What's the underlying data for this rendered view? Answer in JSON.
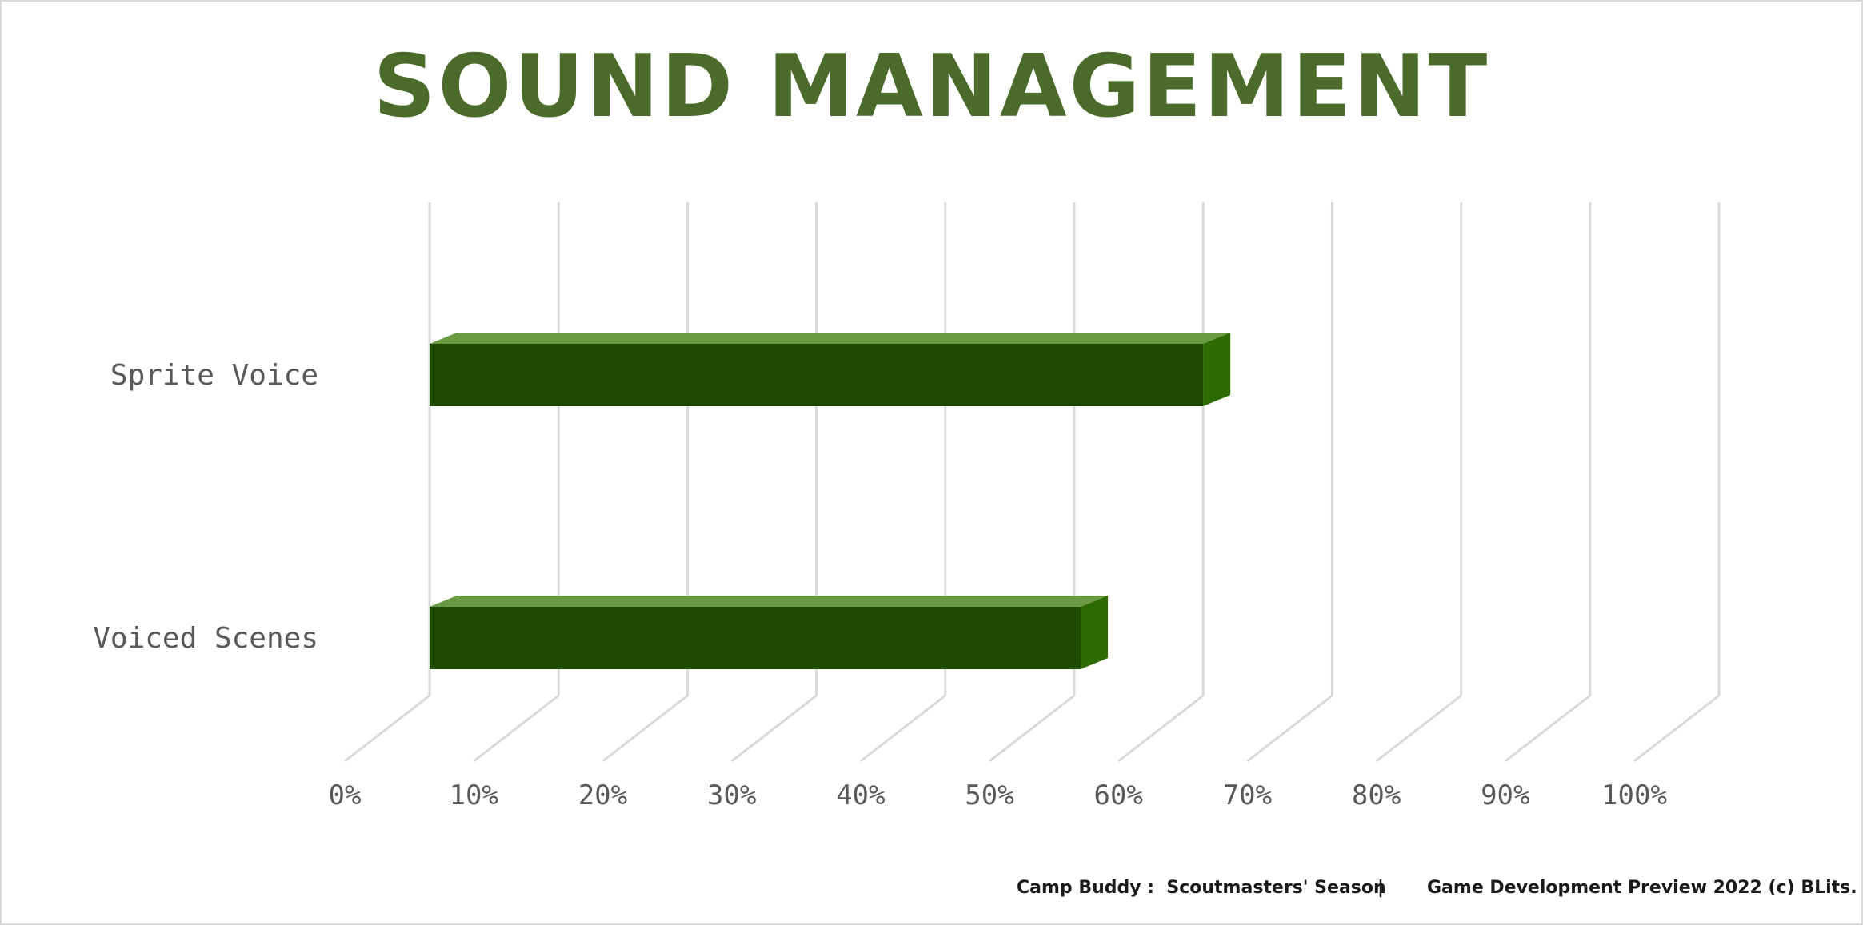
{
  "chart_data": {
    "type": "bar",
    "orientation": "horizontal",
    "style": "3d",
    "title": "SOUND MANAGEMENT",
    "categories": [
      "Sprite Voice",
      "Voiced Scenes"
    ],
    "values": [
      60,
      50.5
    ],
    "unit": "%",
    "xlim": [
      0,
      100
    ],
    "ticks": [
      "0%",
      "10%",
      "20%",
      "30%",
      "40%",
      "50%",
      "60%",
      "70%",
      "80%",
      "90%",
      "100%"
    ],
    "grid": true,
    "legend": "none",
    "colors": {
      "bar_front": "#1e4a00",
      "bar_top": "#6a9a44",
      "bar_side": "#2d6a00",
      "grid": "#d9d9d9",
      "title": "#4a6b2a"
    }
  },
  "footer": {
    "game": "Camp Buddy :  Scoutmasters' Season",
    "separator": "|",
    "credit": "Game Development Preview 2022 (c) BLits."
  }
}
